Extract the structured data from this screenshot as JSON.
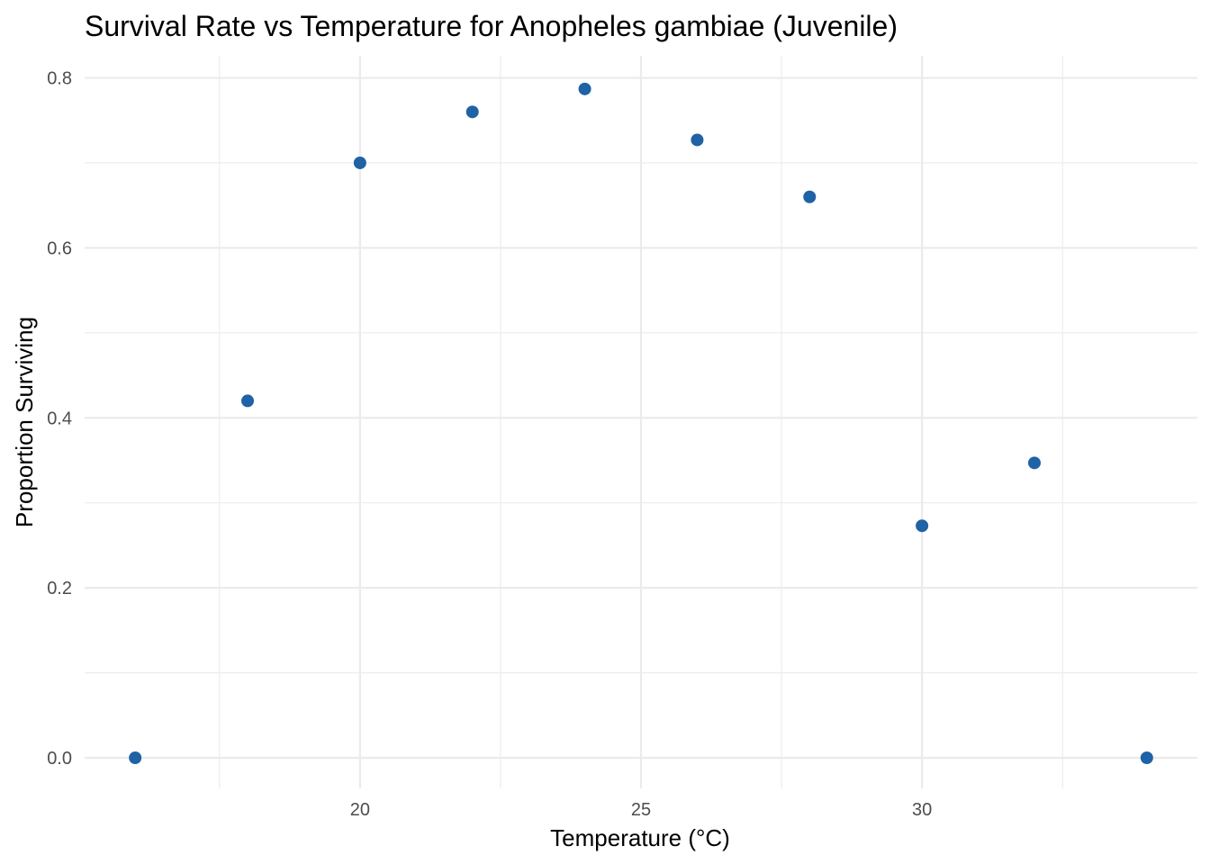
{
  "chart_data": {
    "type": "scatter",
    "title": "Survival Rate vs Temperature for Anopheles gambiae (Juvenile)",
    "xlabel": "Temperature (°C)",
    "ylabel": "Proportion Surviving",
    "x": [
      16,
      18,
      20,
      22,
      24,
      26,
      28,
      30,
      32,
      34
    ],
    "y": [
      0.0,
      0.42,
      0.7,
      0.76,
      0.787,
      0.727,
      0.66,
      0.273,
      0.347,
      0.0
    ],
    "xlim": [
      15.1,
      34.9
    ],
    "ylim": [
      -0.036,
      0.826
    ],
    "x_ticks": [
      20,
      25,
      30
    ],
    "x_tick_labels": [
      "20",
      "25",
      "30"
    ],
    "x_minor_ticks": [
      17.5,
      22.5,
      27.5,
      32.5
    ],
    "y_ticks": [
      0.0,
      0.2,
      0.4,
      0.6,
      0.8
    ],
    "y_tick_labels": [
      "0.0",
      "0.2",
      "0.4",
      "0.6",
      "0.8"
    ],
    "y_minor_ticks": [
      0.1,
      0.3,
      0.5,
      0.7
    ],
    "grid": true,
    "point_color": "#1f62a5"
  }
}
